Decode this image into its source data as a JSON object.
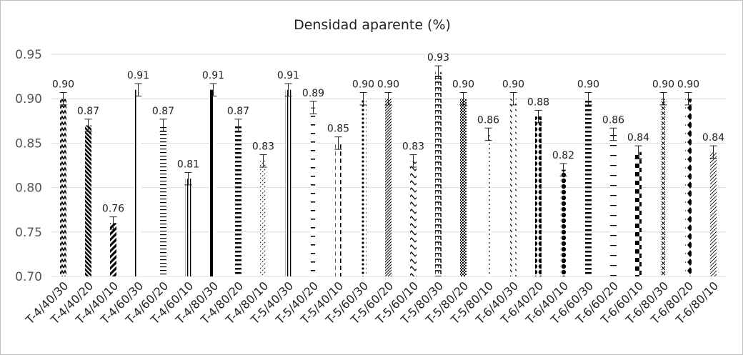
{
  "chart_data": {
    "type": "bar",
    "title": "Densidad aparente (%)",
    "xlabel": "",
    "ylabel": "",
    "ylim": [
      0.7,
      0.95
    ],
    "yticks": [
      "0.70",
      "0.75",
      "0.80",
      "0.85",
      "0.90",
      "0.95"
    ],
    "grid": true,
    "legend": "none",
    "categories": [
      "T-4/40/30",
      "T-4/40/20",
      "T-4/40/10",
      "T-4/60/30",
      "T-4/60/20",
      "T-4/60/10",
      "T-4/80/30",
      "T-4/80/20",
      "T-4/80/10",
      "T-5/40/30",
      "T-5/40/20",
      "T-5/40/10",
      "T-5/60/30",
      "T-5/60/20",
      "T-5/60/10",
      "T-5/80/30",
      "T-5/80/20",
      "T-5/80/10",
      "T-6/40/30",
      "T-6/40/20",
      "T-6/40/10",
      "T-6/60/30",
      "T-6/60/20",
      "T-6/60/10",
      "T-6/80/30",
      "T-6/80/20",
      "T-6/80/10"
    ],
    "values": [
      0.9,
      0.87,
      0.76,
      0.91,
      0.87,
      0.81,
      0.91,
      0.87,
      0.83,
      0.91,
      0.89,
      0.85,
      0.9,
      0.9,
      0.83,
      0.93,
      0.9,
      0.86,
      0.9,
      0.88,
      0.82,
      0.9,
      0.86,
      0.84,
      0.9,
      0.9,
      0.84
    ],
    "labels": [
      "0.90",
      "0.87",
      "0.76",
      "0.91",
      "0.87",
      "0.81",
      "0.91",
      "0.87",
      "0.83",
      "0.91",
      "0.89",
      "0.85",
      "0.90",
      "0.90",
      "0.83",
      "0.93",
      "0.90",
      "0.86",
      "0.90",
      "0.88",
      "0.82",
      "0.90",
      "0.86",
      "0.84",
      "0.90",
      "0.90",
      "0.84"
    ],
    "error": [
      0.007,
      0.007,
      0.007,
      0.007,
      0.007,
      0.007,
      0.007,
      0.007,
      0.007,
      0.007,
      0.007,
      0.007,
      0.007,
      0.007,
      0.007,
      0.007,
      0.007,
      0.007,
      0.007,
      0.007,
      0.007,
      0.007,
      0.007,
      0.007,
      0.007,
      0.007,
      0.007
    ],
    "patterns": [
      "zigzag",
      "diag-bold",
      "diag-heavy",
      "vline-thin",
      "hline",
      "vline-multi",
      "vline-bold",
      "hline-bold",
      "diag-light",
      "vline-multi",
      "dash-h",
      "dash-v",
      "dots-large",
      "diag-small",
      "zigzag-open",
      "wave",
      "checker-small",
      "dots-small",
      "diag-dashed",
      "sphere",
      "sphere",
      "hline-bold",
      "hline-sparse",
      "checker",
      "cross",
      "diamond",
      "diag-thin"
    ]
  }
}
